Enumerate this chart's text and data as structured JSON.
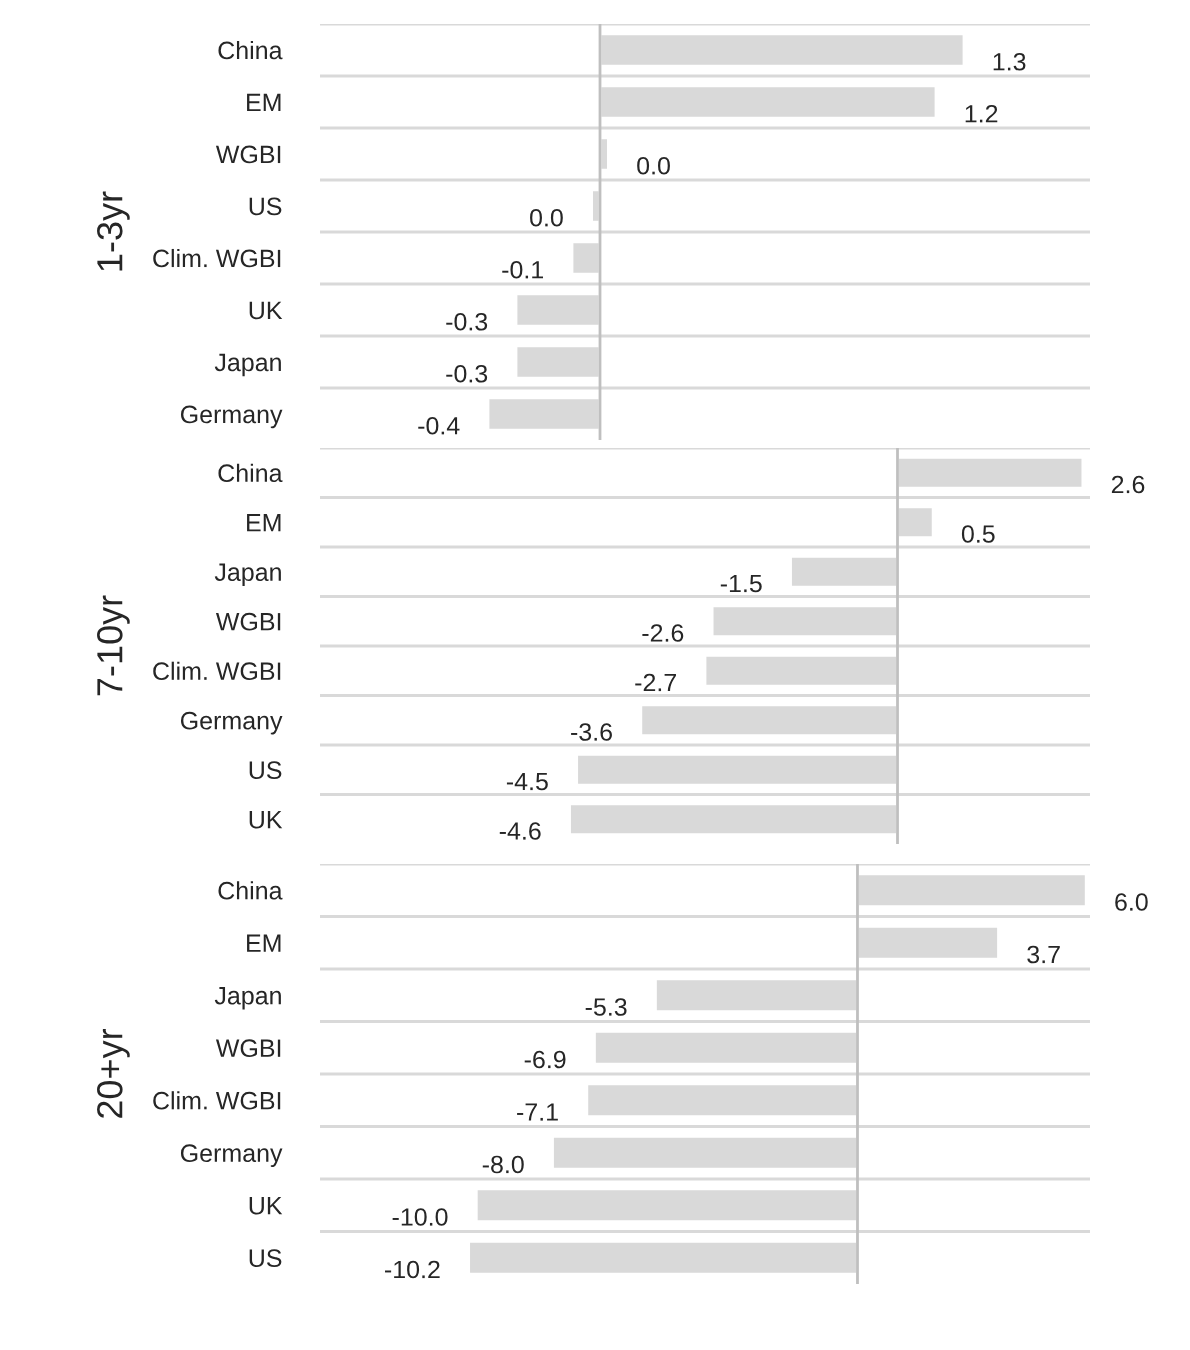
{
  "chart_data": [
    {
      "type": "bar",
      "orientation": "horizontal",
      "ylabel": "1-3yr",
      "categories": [
        "China",
        "EM",
        "WGBI",
        "US",
        "Clim. WGBI",
        "UK",
        "Japan",
        "Germany"
      ],
      "values": [
        1.3,
        1.2,
        0.03,
        -0.03,
        -0.1,
        -0.3,
        -0.3,
        -0.4
      ],
      "value_labels": [
        "1.3",
        "1.2",
        "0.0",
        "0.0",
        "-0.1",
        "-0.3",
        "-0.3",
        "-0.4"
      ],
      "color": "#d9d9d9",
      "xlim": [
        -1.0,
        1.75
      ],
      "tick_labels": "y",
      "grid": "y"
    },
    {
      "type": "bar",
      "orientation": "horizontal",
      "ylabel": "7-10yr",
      "categories": [
        "China",
        "EM",
        "Japan",
        "WGBI",
        "Clim. WGBI",
        "Germany",
        "US",
        "UK"
      ],
      "values": [
        2.6,
        0.5,
        -1.5,
        -2.6,
        -2.7,
        -3.6,
        -4.5,
        -4.6
      ],
      "data_labels": true,
      "color": "#d9d9d9",
      "xlim": [
        -8.1,
        2.7
      ],
      "tick_labels": "y",
      "grid": "y"
    },
    {
      "type": "bar",
      "orientation": "horizontal",
      "ylabel": "20+yr",
      "categories": [
        "China",
        "EM",
        "Japan",
        "WGBI",
        "Clim. WGBI",
        "Germany",
        "UK",
        "US"
      ],
      "values": [
        6.0,
        3.7,
        -5.3,
        -6.9,
        -7.1,
        -8.0,
        -10.0,
        -10.2
      ],
      "value_labels": [
        "6.0",
        "3.7",
        "-5.3",
        "-6.9",
        "-7.1",
        "-8.0",
        "-10.0",
        "-10.2"
      ],
      "color": "#d9d9d9",
      "xlim": [
        -14.1,
        6.1
      ],
      "tick_labels": "y",
      "grid": "y"
    }
  ]
}
